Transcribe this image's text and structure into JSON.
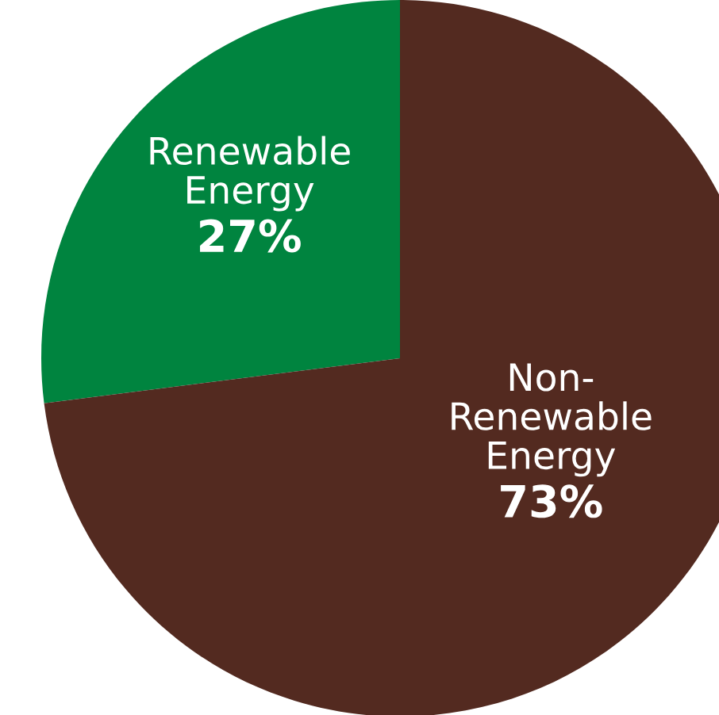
{
  "chart_data": {
    "type": "pie",
    "categories": [
      "Renewable\nEnergy",
      "Non-\nRenewable\nEnergy"
    ],
    "values": [
      27,
      73
    ],
    "colors": [
      "#00843f",
      "#532a20"
    ],
    "value_labels": [
      "27%",
      "73%"
    ]
  }
}
